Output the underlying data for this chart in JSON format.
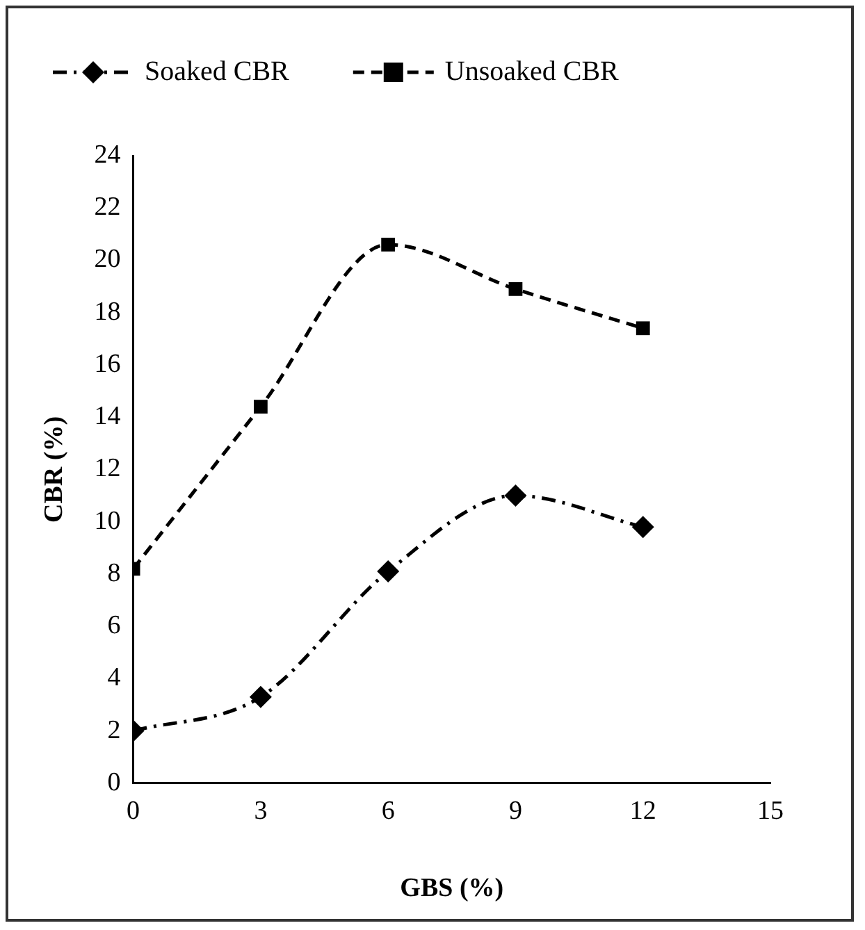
{
  "chart_data": {
    "type": "line",
    "xlabel": "GBS (%)",
    "ylabel": "CBR (%)",
    "x": [
      0,
      3,
      6,
      9,
      12
    ],
    "series": [
      {
        "name": "Soaked CBR",
        "color": "#000000",
        "values": [
          2.0,
          3.3,
          8.1,
          11.0,
          9.8
        ],
        "marker": "diamond",
        "line_style": "dashdot"
      },
      {
        "name": "Unsoaked CBR",
        "color": "#000000",
        "values": [
          8.2,
          14.4,
          20.6,
          18.9,
          17.4
        ],
        "marker": "square",
        "line_style": "dashed"
      }
    ],
    "xlim": [
      0,
      15
    ],
    "xticks": [
      0,
      3,
      6,
      9,
      12,
      15
    ],
    "ylim": [
      0,
      24
    ],
    "yticks": [
      0,
      2,
      4,
      6,
      8,
      10,
      12,
      14,
      16,
      18,
      20,
      22,
      24
    ],
    "grid": false,
    "legend": "top"
  }
}
